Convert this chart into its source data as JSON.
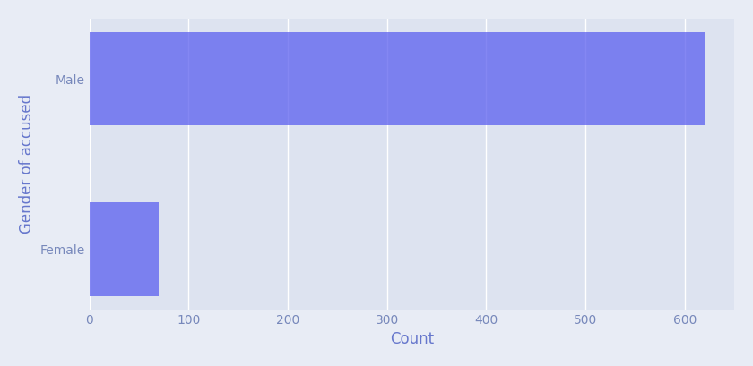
{
  "categories": [
    "Female",
    "Male"
  ],
  "values": [
    70,
    620
  ],
  "bar_color": "#5b5fef",
  "bar_alpha": 0.75,
  "xlabel": "Count",
  "ylabel": "Gender of accused",
  "xlim": [
    0,
    650
  ],
  "xticks": [
    0,
    100,
    200,
    300,
    400,
    500,
    600
  ],
  "background_color": "#e8ecf5",
  "plot_background_color": "#dde3f0",
  "grid_color": "#ffffff",
  "label_color": "#6677cc",
  "tick_color": "#7788bb",
  "bar_height": 0.55
}
